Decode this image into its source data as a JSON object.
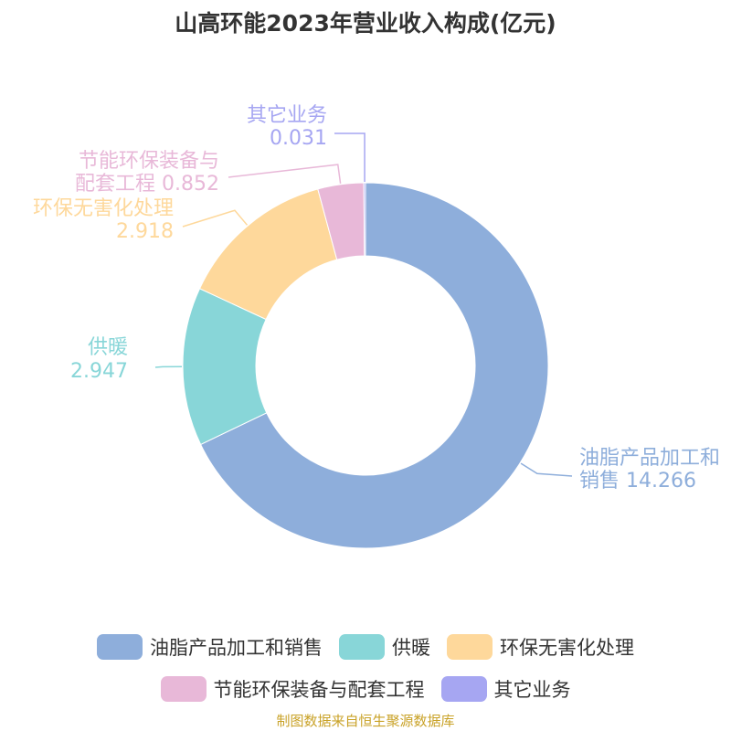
{
  "chart_data": {
    "type": "pie",
    "title": "山高环能2023年营业收入构成(亿元)",
    "unit": "亿元",
    "slices": [
      {
        "name": "油脂产品加工和销售",
        "value": 14.266,
        "color": "#8eaedb",
        "label_lines": [
          "油脂产品加工和",
          "销售 14.266"
        ]
      },
      {
        "name": "供暖",
        "value": 2.947,
        "color": "#88d6d8",
        "label_lines": [
          "供暖",
          "2.947"
        ]
      },
      {
        "name": "环保无害化处理",
        "value": 2.918,
        "color": "#fed89b",
        "label_lines": [
          "环保无害化处理",
          "2.918"
        ]
      },
      {
        "name": "节能环保装备与配套工程",
        "value": 0.852,
        "color": "#e8b8d8",
        "label_lines": [
          "节能环保装备与",
          "配套工程 0.852"
        ]
      },
      {
        "name": "其它业务",
        "value": 0.031,
        "color": "#a6a6f2",
        "label_lines": [
          "其它业务",
          "0.031"
        ]
      }
    ],
    "legend_position": "bottom",
    "legend": [
      "油脂产品加工和销售",
      "供暖",
      "环保无害化处理",
      "节能环保装备与配套工程",
      "其它业务"
    ]
  },
  "source_note": "制图数据来自恒生聚源数据库"
}
